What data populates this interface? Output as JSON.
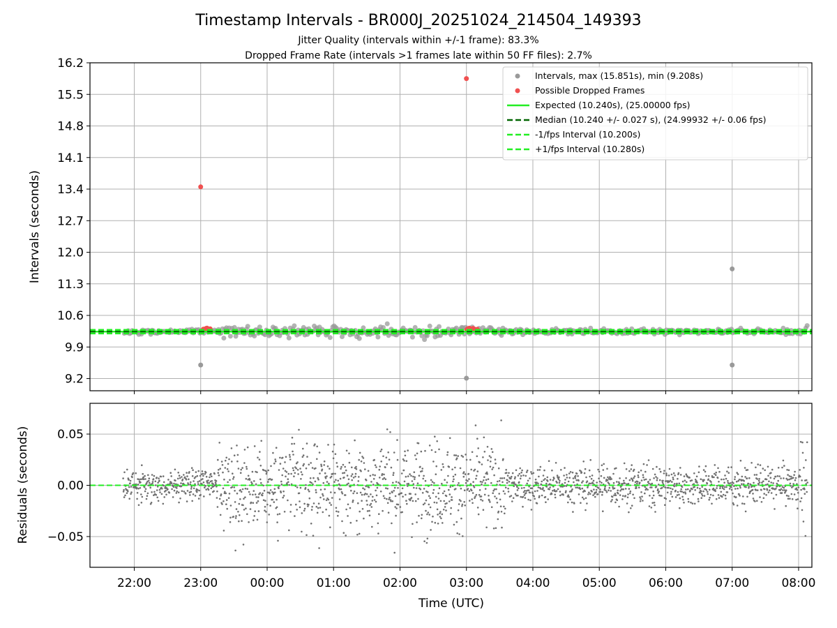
{
  "chart_data": [
    {
      "type": "scatter",
      "title": "Timestamp Intervals - BR000J_20251024_214504_149393",
      "subtitle_lines": [
        "Jitter Quality (intervals within +/-1 frame): 83.3%",
        "Dropped Frame Rate (intervals >1 frames late within 50 FF files): 2.7%"
      ],
      "xlabel": "",
      "ylabel": "Intervals (seconds)",
      "ylim": [
        8.93,
        16.2
      ],
      "yticks": [
        "16.2",
        "15.5",
        "14.8",
        "14.1",
        "13.4",
        "12.7",
        "12.0",
        "11.3",
        "10.6",
        "9.9",
        "9.2"
      ],
      "ytick_values": [
        16.2,
        15.5,
        14.8,
        14.1,
        13.4,
        12.7,
        12.0,
        11.3,
        10.6,
        9.9,
        9.2
      ],
      "grid": true,
      "legend_placement": "top-right",
      "legend": [
        "Intervals, max (15.851s), min (9.208s)",
        "Possible Dropped Frames",
        "Expected (10.240s), (25.00000 fps)",
        "Median (10.240 +/- 0.027 s), (24.99932 +/- 0.06 fps)",
        "-1/fps Interval (10.200s)",
        "+1/fps Interval (10.280s)"
      ],
      "expected": 10.24,
      "median": 10.24,
      "minus_interval": 10.2,
      "plus_interval": 10.28,
      "outliers": [
        {
          "time": "23:00",
          "value": 13.45,
          "dropped": true
        },
        {
          "time": "03:00",
          "value": 15.851,
          "dropped": true
        },
        {
          "time": "07:00",
          "value": 11.63,
          "dropped": false
        },
        {
          "time": "07:00",
          "value": 9.5,
          "dropped": false
        },
        {
          "time": "23:00",
          "value": 9.5,
          "dropped": false
        },
        {
          "time": "03:00",
          "value": 9.208,
          "dropped": false
        }
      ],
      "colors": {
        "intervals": "#999999",
        "dropped": "#f05050",
        "expected": "#22ee22",
        "median": "#006400",
        "limits": "#22ee22"
      }
    },
    {
      "type": "scatter",
      "xlabel": "Time (UTC)",
      "ylabel": "Residuals (seconds)",
      "ylim": [
        -0.08,
        0.08
      ],
      "yticks": [
        "0.05",
        "0.00",
        "−0.05"
      ],
      "ytick_values": [
        0.05,
        0.0,
        -0.05
      ],
      "xticks": [
        "22:00",
        "23:00",
        "00:00",
        "01:00",
        "02:00",
        "03:00",
        "04:00",
        "05:00",
        "06:00",
        "07:00",
        "08:00"
      ],
      "x_range": [
        "21:20",
        "08:12"
      ],
      "data_start": "21:50",
      "grid": true,
      "zero_line_color": "#22ee22",
      "colors": {
        "residuals": "#707070"
      }
    }
  ]
}
